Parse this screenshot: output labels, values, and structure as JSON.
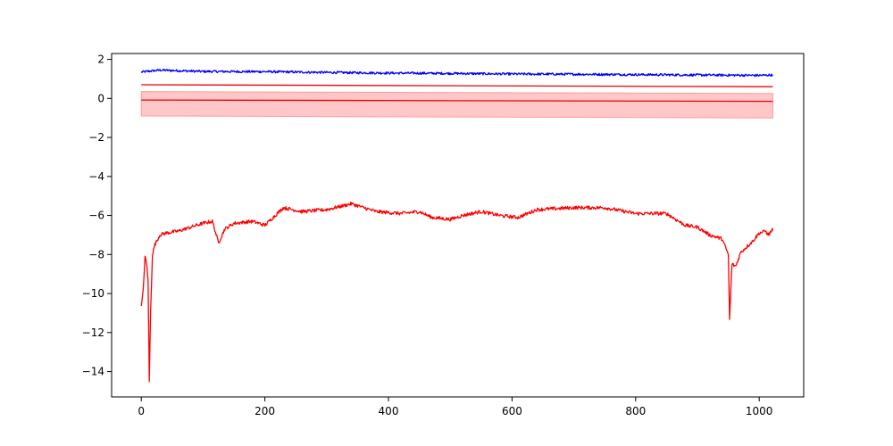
{
  "chart_data": {
    "type": "line",
    "title": "",
    "xlabel": "",
    "ylabel": "",
    "xlim": [
      -48,
      1072
    ],
    "ylim": [
      -15.3,
      2.3
    ],
    "xticks": [
      0,
      200,
      400,
      600,
      800,
      1000
    ],
    "yticks": [
      2,
      0,
      -2,
      -4,
      -6,
      -8,
      -10,
      -12,
      -14
    ],
    "xtick_labels": [
      "0",
      "200",
      "400",
      "600",
      "800",
      "1000"
    ],
    "ytick_labels": [
      "2",
      "0",
      "−2",
      "−4",
      "−6",
      "−8",
      "−10",
      "−12",
      "−14"
    ],
    "grid": false,
    "legend": null,
    "series": [
      {
        "color": "#0000ff",
        "style": "noisy",
        "points": [
          [
            0,
            1.35
          ],
          [
            30,
            1.45
          ],
          [
            100,
            1.38
          ],
          [
            200,
            1.37
          ],
          [
            300,
            1.33
          ],
          [
            400,
            1.3
          ],
          [
            500,
            1.28
          ],
          [
            600,
            1.25
          ],
          [
            700,
            1.24
          ],
          [
            800,
            1.22
          ],
          [
            900,
            1.2
          ],
          [
            1000,
            1.18
          ],
          [
            1022,
            1.2
          ]
        ]
      },
      {
        "color": "#e8000b",
        "style": "straight",
        "points": [
          [
            0,
            0.7
          ],
          [
            1022,
            0.6
          ]
        ]
      },
      {
        "color": "#e8000b",
        "style": "straight",
        "points": [
          [
            0,
            -0.08
          ],
          [
            1022,
            -0.15
          ]
        ],
        "band": {
          "color": "#ff9999",
          "upper": [
            [
              0,
              0.35
            ],
            [
              1022,
              0.25
            ]
          ],
          "lower": [
            [
              0,
              -0.9
            ],
            [
              1022,
              -1.0
            ]
          ]
        }
      },
      {
        "color": "#ff0000",
        "style": "noisy",
        "points": [
          [
            0,
            -10.7
          ],
          [
            3,
            -9.9
          ],
          [
            6,
            -8.1
          ],
          [
            9,
            -8.6
          ],
          [
            11,
            -9.3
          ],
          [
            13,
            -14.5
          ],
          [
            15,
            -11.0
          ],
          [
            18,
            -8.0
          ],
          [
            22,
            -7.5
          ],
          [
            30,
            -7.0
          ],
          [
            40,
            -6.9
          ],
          [
            60,
            -6.8
          ],
          [
            80,
            -6.6
          ],
          [
            100,
            -6.4
          ],
          [
            115,
            -6.3
          ],
          [
            125,
            -7.4
          ],
          [
            135,
            -6.7
          ],
          [
            150,
            -6.4
          ],
          [
            180,
            -6.3
          ],
          [
            200,
            -6.5
          ],
          [
            230,
            -5.6
          ],
          [
            260,
            -5.8
          ],
          [
            300,
            -5.7
          ],
          [
            340,
            -5.4
          ],
          [
            380,
            -5.8
          ],
          [
            420,
            -5.9
          ],
          [
            450,
            -5.8
          ],
          [
            470,
            -6.1
          ],
          [
            500,
            -6.2
          ],
          [
            520,
            -6.0
          ],
          [
            550,
            -5.8
          ],
          [
            580,
            -6.0
          ],
          [
            610,
            -6.1
          ],
          [
            640,
            -5.7
          ],
          [
            700,
            -5.6
          ],
          [
            750,
            -5.6
          ],
          [
            800,
            -5.9
          ],
          [
            850,
            -5.9
          ],
          [
            880,
            -6.5
          ],
          [
            900,
            -6.6
          ],
          [
            920,
            -7.0
          ],
          [
            940,
            -7.2
          ],
          [
            950,
            -8.0
          ],
          [
            952,
            -11.3
          ],
          [
            956,
            -8.5
          ],
          [
            962,
            -8.6
          ],
          [
            970,
            -7.9
          ],
          [
            990,
            -7.3
          ],
          [
            1000,
            -6.9
          ],
          [
            1010,
            -6.8
          ],
          [
            1015,
            -7.0
          ],
          [
            1022,
            -6.7
          ]
        ]
      }
    ]
  }
}
